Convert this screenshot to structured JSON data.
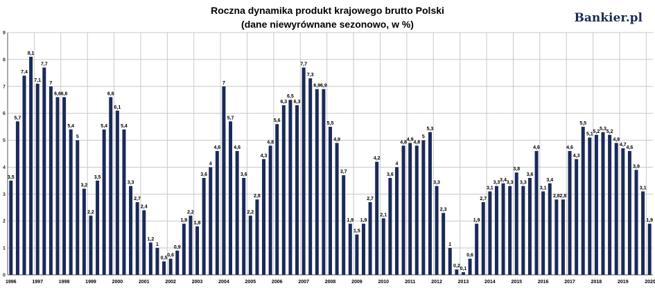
{
  "title_line1": "Roczna dynamika produkt krajowego brutto Polski",
  "title_line2": "(dane niewyrównane sezonowo, w %)",
  "brand": "Bankier.pl",
  "colors": {
    "bar": "#1a2a5a",
    "grid": "#c8c8c8",
    "axis": "#555555"
  },
  "chart_data": {
    "type": "bar",
    "ylim": [
      0,
      9
    ],
    "yticks": [
      0,
      1,
      2,
      3,
      4,
      5,
      6,
      7,
      8,
      9
    ],
    "grid": true,
    "x_labels": [
      "1996",
      "1997",
      "1998",
      "1999",
      "2000",
      "2001",
      "2002",
      "2003",
      "2004",
      "2005",
      "2006",
      "2007",
      "2008",
      "2009",
      "2010",
      "2011",
      "2012",
      "2013",
      "2014",
      "2015",
      "2016",
      "2017",
      "2018",
      "2019",
      "2020"
    ],
    "values": [
      3.5,
      5.7,
      7.4,
      8.1,
      7.1,
      7.7,
      7,
      6.6,
      6.6,
      5.4,
      5,
      3.2,
      2.2,
      3.5,
      5.4,
      6.6,
      6.1,
      5.4,
      3.3,
      2.7,
      2.4,
      1.2,
      1,
      0.5,
      0.6,
      0.9,
      1.9,
      2.2,
      1.8,
      3.6,
      4,
      4.6,
      7,
      5.7,
      4.6,
      3.6,
      2.2,
      2.8,
      4.3,
      4.8,
      5.6,
      6.3,
      6.5,
      6.3,
      7.7,
      7.3,
      6.9,
      6.9,
      5.5,
      4.9,
      3.7,
      1.9,
      1.5,
      1.9,
      2.7,
      4.2,
      2.1,
      3.6,
      4,
      4.8,
      4.9,
      4.8,
      5,
      5.3,
      3.3,
      2.3,
      1,
      0.2,
      0.1,
      0.6,
      1.9,
      2.7,
      3.1,
      3.3,
      3.4,
      3.3,
      3.8,
      3.3,
      3.6,
      4.6,
      3.1,
      3.4,
      2.8,
      2.8,
      4.6,
      4.3,
      5.5,
      5.1,
      5.2,
      5.3,
      5.2,
      4.9,
      4.7,
      4.6,
      3.9,
      3.1,
      1.9
    ],
    "labels": [
      "3,5",
      "5,7",
      "7,4",
      "8,1",
      "7,1",
      "7,7",
      "7",
      "6,6",
      "6,6",
      "5,4",
      "5",
      "3,2",
      "2,2",
      "3,5",
      "5,4",
      "6,6",
      "6,1",
      "5,4",
      "3,3",
      "2,7",
      "2,4",
      "1,2",
      "1",
      "0,5",
      "0,6",
      "0,9",
      "1,9",
      "2,2",
      "1,8",
      "3,6",
      "4",
      "4,6",
      "7",
      "5,7",
      "4,6",
      "3,6",
      "2,2",
      "2,8",
      "4,3",
      "4,8",
      "5,6",
      "6,3",
      "6,5",
      "6,3",
      "7,7",
      "7,3",
      "6,9",
      "6,9",
      "5,5",
      "4,9",
      "3,7",
      "1,9",
      "1,5",
      "1,9",
      "2,7",
      "4,2",
      "2,1",
      "3,6",
      "4",
      "4,8",
      "4,9",
      "4,8",
      "5",
      "5,3",
      "3,3",
      "2,3",
      "1",
      "0,2",
      "0,1",
      "0,6",
      "1,9",
      "2,7",
      "3,1",
      "3,3",
      "3,4",
      "3,3",
      "3,8",
      "3,3",
      "3,6",
      "4,6",
      "3,1",
      "3,4",
      "2,8",
      "2,8",
      "4,6",
      "4,3",
      "5,5",
      "5,1",
      "5,2",
      "5,3",
      "5,2",
      "4,9",
      "4,7",
      "4,6",
      "3,9",
      "3,1",
      "1,9"
    ]
  }
}
